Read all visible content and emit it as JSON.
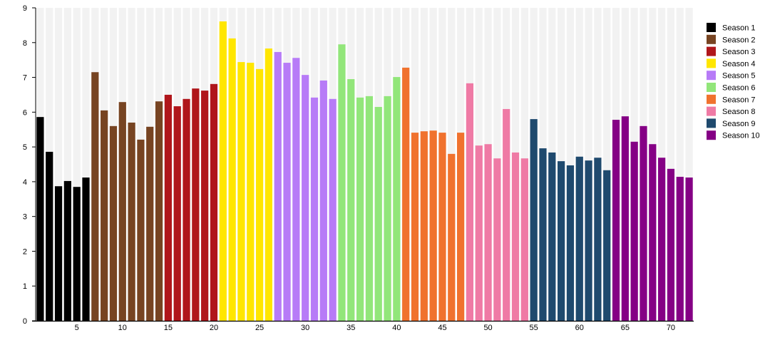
{
  "chart_data": {
    "type": "bar",
    "title": "",
    "xlabel": "",
    "ylabel": "",
    "ylim": [
      0,
      9
    ],
    "yticks": [
      0,
      1,
      2,
      3,
      4,
      5,
      6,
      7,
      8,
      9
    ],
    "xticks": [
      5,
      10,
      15,
      20,
      25,
      30,
      35,
      40,
      45,
      50,
      55,
      60,
      65,
      70
    ],
    "grid": false,
    "legend_position": "right",
    "series": [
      {
        "name": "Season 1",
        "color": "#000000",
        "x": [
          1,
          2,
          3,
          4,
          5,
          6
        ],
        "values": [
          5.86,
          4.86,
          3.87,
          4.02,
          3.85,
          4.12
        ]
      },
      {
        "name": "Season 2",
        "color": "#774422",
        "x": [
          7,
          8,
          9,
          10,
          11,
          12,
          13,
          14
        ],
        "values": [
          7.15,
          6.05,
          5.6,
          6.29,
          5.7,
          5.21,
          5.58,
          6.31
        ]
      },
      {
        "name": "Season 3",
        "color": "#b0161b",
        "x": [
          15,
          16,
          17,
          18,
          19,
          20
        ],
        "values": [
          6.5,
          6.17,
          6.38,
          6.68,
          6.62,
          6.81
        ]
      },
      {
        "name": "Season 4",
        "color": "#ffe600",
        "x": [
          21,
          22,
          23,
          24,
          25,
          26
        ],
        "values": [
          8.61,
          8.12,
          7.44,
          7.42,
          7.24,
          7.83
        ]
      },
      {
        "name": "Season 5",
        "color": "#b77bf7",
        "x": [
          27,
          28,
          29,
          30,
          31,
          32,
          33
        ],
        "values": [
          7.73,
          7.42,
          7.56,
          7.07,
          6.42,
          6.91,
          6.38
        ]
      },
      {
        "name": "Season 6",
        "color": "#92e67a",
        "x": [
          34,
          35,
          36,
          37,
          38,
          39,
          40
        ],
        "values": [
          7.95,
          6.95,
          6.42,
          6.46,
          6.15,
          6.46,
          7.01
        ]
      },
      {
        "name": "Season 7",
        "color": "#f0722e",
        "x": [
          41,
          42,
          43,
          44,
          45,
          46,
          47
        ],
        "values": [
          7.28,
          5.41,
          5.45,
          5.47,
          5.41,
          4.8,
          5.41
        ]
      },
      {
        "name": "Season 8",
        "color": "#ef7aa5",
        "x": [
          48,
          49,
          50,
          51,
          52,
          53,
          54
        ],
        "values": [
          6.83,
          5.04,
          5.08,
          4.67,
          6.09,
          4.84,
          4.67
        ]
      },
      {
        "name": "Season 9",
        "color": "#1f4a6e",
        "x": [
          55,
          56,
          57,
          58,
          59,
          60,
          61,
          62,
          63
        ],
        "values": [
          5.8,
          4.96,
          4.84,
          4.59,
          4.47,
          4.72,
          4.61,
          4.69,
          4.33
        ]
      },
      {
        "name": "Season 10",
        "color": "#850085",
        "x": [
          64,
          65,
          66,
          67,
          68,
          69,
          70,
          71,
          72
        ],
        "values": [
          5.78,
          5.88,
          5.15,
          5.6,
          5.08,
          4.69,
          4.37,
          4.14,
          4.12
        ]
      }
    ]
  }
}
